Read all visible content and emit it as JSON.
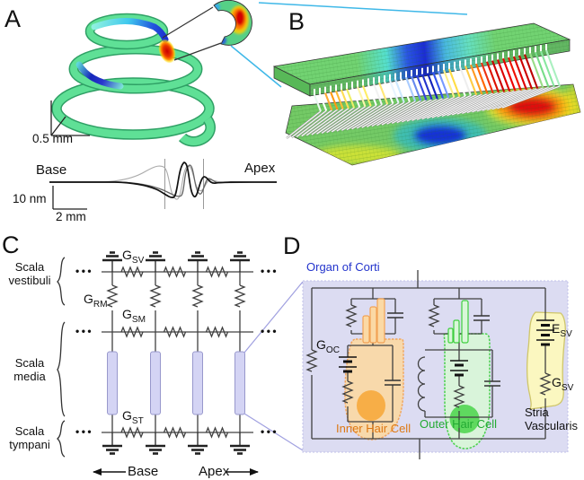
{
  "figure": {
    "panels": {
      "a": {
        "label": "A",
        "scalebar_3d": "0.5 mm",
        "wave": {
          "base": "Base",
          "apex": "Apex",
          "yscale": "10 nm",
          "xscale": "2 mm"
        }
      },
      "b": {
        "label": "B",
        "hair_palette": [
          "#e8f8ee",
          "#ffffff",
          "#ffaa33",
          "#ff9911",
          "#ffbb33",
          "#ffdd55",
          "#eeee66",
          "#ffffff",
          "#fff6aa",
          "#ffee66",
          "#ffffff",
          "#f2f2f2",
          "#ffe877",
          "#ffffff",
          "#e8f4ff",
          "#cce8ff",
          "#ffffff",
          "#aaccff",
          "#6688ee",
          "#3344dd",
          "#2233cc",
          "#1122bb",
          "#3355ee",
          "#7799ff",
          "#ffee88",
          "#ffdd44",
          "#ffffff",
          "#eeeeee",
          "#ffcc44",
          "#ff9922",
          "#ff6600",
          "#ee3311",
          "#dd1100",
          "#cc0000",
          "#dd0000",
          "#ee0000",
          "#ee1100",
          "#dd0000",
          "#cc0000",
          "#bb0000",
          "#99dd88",
          "#77dd88",
          "#88e8a0",
          "#aaf0c0"
        ]
      },
      "c": {
        "label": "C",
        "rows": [
          [
            "Scala",
            "vestibuli"
          ],
          [
            "Scala",
            "media"
          ],
          [
            "Scala",
            "tympani"
          ]
        ],
        "g_sv": {
          "base": "G",
          "sub": "SV"
        },
        "g_rm": {
          "base": "G",
          "sub": "RM"
        },
        "g_sm": {
          "base": "G",
          "sub": "SM"
        },
        "g_st": {
          "base": "G",
          "sub": "ST"
        },
        "base": "Base",
        "apex": "Apex",
        "ellipsis": "•••"
      },
      "d": {
        "label": "D",
        "title": "Organ of Corti",
        "g_oc": {
          "base": "G",
          "sub": "OC"
        },
        "e_sv": {
          "base": "E",
          "sub": "SV"
        },
        "g_sv": {
          "base": "G",
          "sub": "SV"
        },
        "ihc": "Inner Hair Cell",
        "ohc": "Outer Hair Cell",
        "stria": [
          "Stria",
          "Vascularis"
        ]
      }
    },
    "colors": {
      "spiral_green": "#5cd98c",
      "mesh_green": "#74ca66",
      "hot_red": "#d40000",
      "cold_blue": "#1530d6",
      "cyan_link": "#3fb8e8",
      "lavender": "#dcdcf2",
      "periwinkle": "#a0a0e0",
      "ihc_fill": "#fbd9a5",
      "ihc_stroke": "#f2a254",
      "ohc_fill": "#d9f7d9",
      "ohc_stroke": "#3ecf3e",
      "stria_yellow": "#fbf7c0",
      "wire": "#404040",
      "title_blue": "#2233cc",
      "ihc_text": "#dd7711",
      "ohc_text": "#22aa33"
    }
  }
}
